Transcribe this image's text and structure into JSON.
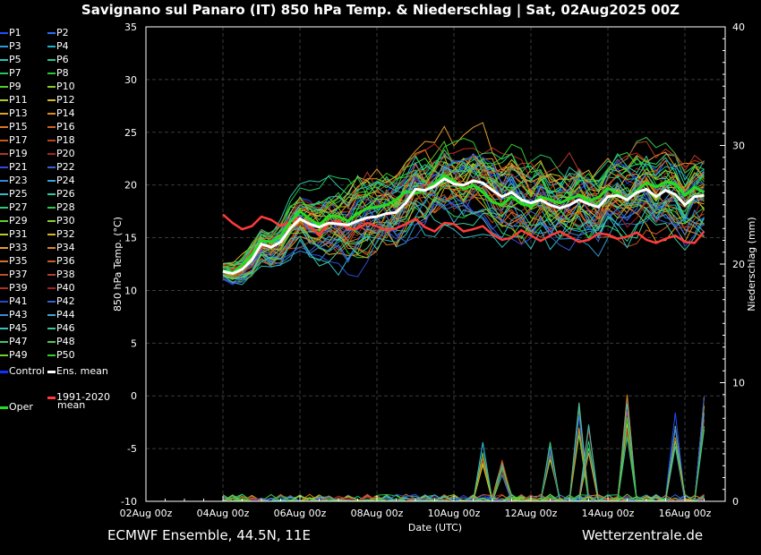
{
  "header": {
    "title": "Savignano sul Panaro  (IT)  850 hPa Temp. & Niederschlag | Sat, 02Aug2025 00Z"
  },
  "footer": {
    "left": "ECMWF Ensemble, 44.5N, 11E",
    "right": "Wetterzentrale.de"
  },
  "legend": {
    "members": [
      "P1",
      "P2",
      "P3",
      "P4",
      "P5",
      "P6",
      "P7",
      "P8",
      "P9",
      "P10",
      "P11",
      "P12",
      "P13",
      "P14",
      "P15",
      "P16",
      "P17",
      "P18",
      "P19",
      "P20",
      "P21",
      "P22",
      "P23",
      "P24",
      "P25",
      "P26",
      "P27",
      "P28",
      "P29",
      "P30",
      "P31",
      "P32",
      "P33",
      "P34",
      "P35",
      "P36",
      "P37",
      "P38",
      "P39",
      "P40",
      "P41",
      "P42",
      "P43",
      "P44",
      "P45",
      "P46",
      "P47",
      "P48",
      "P49",
      "P50"
    ],
    "member_colors": [
      "#1f4fff",
      "#2a6cff",
      "#2e9bd6",
      "#1fb3c8",
      "#22c4b8",
      "#1fc98a",
      "#23c95a",
      "#27c93a",
      "#55cc22",
      "#7fd11f",
      "#b5c81f",
      "#d9b81f",
      "#e0a21f",
      "#e08c1f",
      "#d9781f",
      "#cc651f",
      "#c9551f",
      "#c0431f",
      "#b8321f",
      "#aa221f",
      "#2f4bdb",
      "#3366dd",
      "#3388dd",
      "#33a5d6",
      "#30bcc4",
      "#2ec9a0",
      "#2ec974",
      "#35c94c",
      "#5ecf2a",
      "#88d12a",
      "#bcc92a",
      "#dcb42a",
      "#e39d2a",
      "#e0862a",
      "#d6702a",
      "#c95d2a",
      "#c24c2a",
      "#b83c2a",
      "#ad2e2a",
      "#a3232a",
      "#2f43c8",
      "#3a5fd0",
      "#3f86d6",
      "#3fa8d0",
      "#3cc0bb",
      "#39c996",
      "#3ec96b",
      "#4ccd44",
      "#73d12c",
      "#2ed12e"
    ],
    "control_label": "Control",
    "mean_label": "Ens. mean",
    "climate_label_line1": "1991-2020",
    "climate_label_line2": "mean",
    "oper_label": "Oper",
    "control_color": "#1030ff",
    "mean_color": "#ffffff",
    "climate_color": "#ff3b3b",
    "oper_color": "#22dd22"
  },
  "chart_data": {
    "type": "line",
    "x_dates": [
      "02Aug 00z",
      "04Aug 00z",
      "06Aug 00z",
      "08Aug 00z",
      "10Aug 00z",
      "12Aug 00z",
      "14Aug 00z",
      "16Aug 00z"
    ],
    "xlabel": "Date (UTC)",
    "ylabel_left": "850 hPa Temp. (°C)",
    "ylabel_right": "Niederschlag (mm)",
    "ylim_left": [
      -10,
      35
    ],
    "ylim_right": [
      0,
      40
    ],
    "left_ticks": [
      -10,
      -5,
      0,
      5,
      10,
      15,
      20,
      25,
      30,
      35
    ],
    "right_ticks": [
      0,
      10,
      20,
      30,
      40
    ],
    "grid": true,
    "step_hours": 6,
    "start_step": 8,
    "ens_mean": [
      11.8,
      11.6,
      12.0,
      12.9,
      14.4,
      14.1,
      14.6,
      15.9,
      16.8,
      16.3,
      16.0,
      16.4,
      16.3,
      16.2,
      16.6,
      16.9,
      17.0,
      17.3,
      17.4,
      18.3,
      19.6,
      19.5,
      19.9,
      20.6,
      20.1,
      20.0,
      20.4,
      20.2,
      19.5,
      18.9,
      19.3,
      18.6,
      18.3,
      18.6,
      18.1,
      17.8,
      18.1,
      18.6,
      18.2,
      17.9,
      18.9,
      19.0,
      18.6,
      19.3,
      19.6,
      18.9,
      19.5,
      19.1,
      18.1,
      18.9,
      19.0
    ],
    "climate_mean": [
      17.2,
      16.4,
      15.8,
      16.1,
      17.0,
      16.7,
      16.1,
      16.5,
      16.9,
      16.1,
      15.3,
      16.4,
      16.6,
      15.8,
      15.9,
      16.4,
      16.1,
      15.7,
      15.9,
      16.3,
      16.8,
      16.0,
      15.6,
      16.4,
      16.3,
      15.6,
      15.8,
      16.1,
      15.3,
      14.8,
      15.0,
      15.7,
      15.2,
      14.7,
      15.2,
      15.6,
      15.1,
      14.6,
      14.8,
      15.4,
      15.3,
      14.9,
      15.1,
      15.5,
      14.8,
      14.5,
      14.9,
      15.2,
      14.6,
      14.5,
      15.6
    ],
    "oper": [
      11.9,
      11.7,
      12.4,
      13.4,
      14.7,
      14.6,
      15.2,
      16.5,
      17.5,
      16.8,
      16.2,
      17.1,
      17.0,
      16.6,
      17.3,
      17.8,
      17.9,
      18.1,
      18.6,
      19.4,
      19.2,
      19.5,
      20.2,
      20.9,
      20.4,
      19.6,
      20.0,
      19.3,
      18.4,
      18.1,
      18.9,
      18.2,
      18.0,
      18.9,
      18.6,
      18.3,
      18.7,
      19.0,
      18.5,
      18.8,
      19.7,
      19.2,
      18.6,
      19.5,
      20.2,
      19.8,
      20.3,
      20.1,
      19.0,
      19.8,
      19.3
    ],
    "precip_peaks_mm": [
      {
        "date": "10Aug 18z",
        "mm": 5.0
      },
      {
        "date": "11Aug 06z",
        "mm": 3.5
      },
      {
        "date": "12Aug 12z",
        "mm": 5.5
      },
      {
        "date": "13Aug 06z",
        "mm": 8.5
      },
      {
        "date": "13Aug 12z",
        "mm": 6.5
      },
      {
        "date": "14Aug 12z",
        "mm": 9.0
      },
      {
        "date": "15Aug 18z",
        "mm": 7.5
      },
      {
        "date": "16Aug 12z",
        "mm": 9.5
      }
    ]
  }
}
